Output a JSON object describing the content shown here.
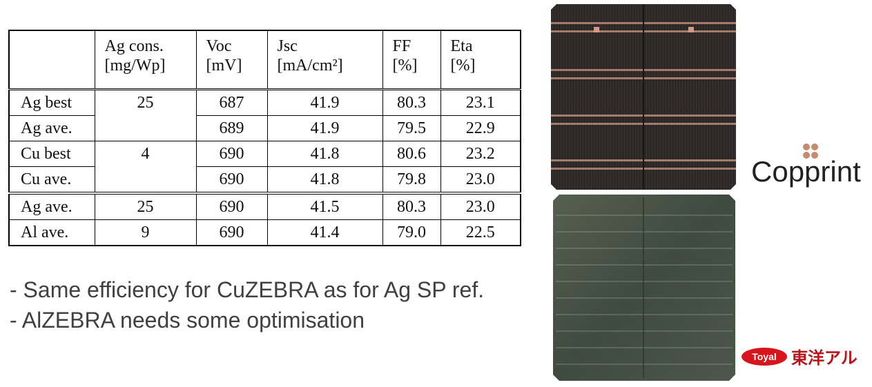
{
  "table": {
    "header": [
      [
        "Ag cons.",
        "[mg/Wp]"
      ],
      [
        "Voc",
        "[mV]"
      ],
      [
        "Jsc",
        "[mA/cm²]"
      ],
      [
        "FF",
        "[%]"
      ],
      [
        "Eta",
        "[%]"
      ]
    ],
    "rows": [
      {
        "label": "Ag best",
        "ag_cons": "25",
        "voc": "687",
        "jsc": "41.9",
        "ff": "80.3",
        "eta": "23.1"
      },
      {
        "label": "Ag ave.",
        "voc": "689",
        "jsc": "41.9",
        "ff": "79.5",
        "eta": "22.9"
      },
      {
        "label": "Cu best",
        "ag_cons": "4",
        "voc": "690",
        "jsc": "41.8",
        "ff": "80.6",
        "eta": "23.2"
      },
      {
        "label": "Cu ave.",
        "voc": "690",
        "jsc": "41.8",
        "ff": "79.8",
        "eta": "23.0"
      },
      {
        "label": "Ag ave.",
        "ag_cons": "25",
        "voc": "690",
        "jsc": "41.5",
        "ff": "80.3",
        "eta": "23.0"
      },
      {
        "label": "Al ave.",
        "ag_cons": "9",
        "voc": "690",
        "jsc": "41.4",
        "ff": "79.0",
        "eta": "22.5"
      }
    ]
  },
  "bullets": [
    "- Same efficiency for CuZEBRA as for Ag SP ref.",
    "- AlZEBRA needs some optimisation"
  ],
  "logos": {
    "copprint": "Copprint",
    "toyal": "Toyal",
    "toyal_jp": "東洋アル"
  }
}
